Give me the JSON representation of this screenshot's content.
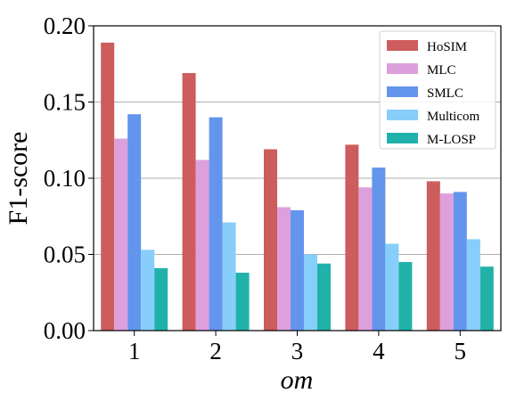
{
  "chart_data": {
    "type": "bar",
    "categories": [
      "1",
      "2",
      "3",
      "4",
      "5"
    ],
    "series": [
      {
        "name": "HoSIM",
        "color": "#cd5c5c",
        "values": [
          0.189,
          0.169,
          0.119,
          0.122,
          0.098
        ]
      },
      {
        "name": "MLC",
        "color": "#dda0dd",
        "values": [
          0.126,
          0.112,
          0.081,
          0.094,
          0.09
        ]
      },
      {
        "name": "SMLC",
        "color": "#6495ed",
        "values": [
          0.142,
          0.14,
          0.079,
          0.107,
          0.091
        ]
      },
      {
        "name": "Multicom",
        "color": "#87cefa",
        "values": [
          0.053,
          0.071,
          0.05,
          0.057,
          0.06
        ]
      },
      {
        "name": "M-LOSP",
        "color": "#20b2aa",
        "values": [
          0.041,
          0.038,
          0.044,
          0.045,
          0.042
        ]
      }
    ],
    "xlabel": "om",
    "ylabel": "F1-score",
    "ylim": [
      0,
      0.2
    ],
    "yticks": [
      "0.00",
      "0.05",
      "0.10",
      "0.15",
      "0.20"
    ],
    "grid": "horizontal",
    "legend_position": "top-right"
  }
}
